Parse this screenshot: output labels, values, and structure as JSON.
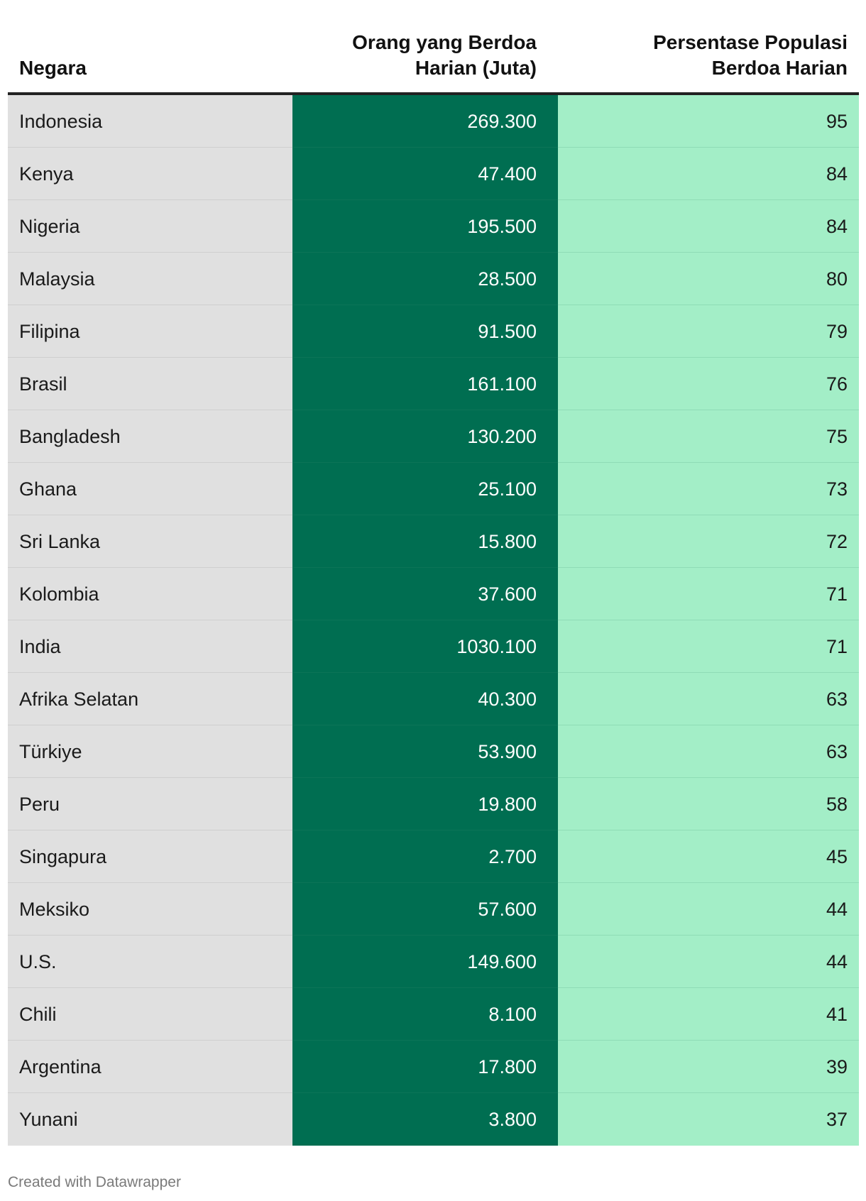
{
  "chart_data": {
    "type": "table",
    "columns": [
      "Negara",
      "Orang yang Berdoa Harian (Juta)",
      "Persentase Populasi Berdoa Harian"
    ],
    "colors": {
      "country_bg": "#e0e0e0",
      "count_bg": "#006e51",
      "pct_bg": "#a3eec7"
    },
    "rows": [
      {
        "country": "Indonesia",
        "count": "269.300",
        "pct": "95"
      },
      {
        "country": "Kenya",
        "count": "47.400",
        "pct": "84"
      },
      {
        "country": "Nigeria",
        "count": "195.500",
        "pct": "84"
      },
      {
        "country": "Malaysia",
        "count": "28.500",
        "pct": "80"
      },
      {
        "country": "Filipina",
        "count": "91.500",
        "pct": "79"
      },
      {
        "country": "Brasil",
        "count": "161.100",
        "pct": "76"
      },
      {
        "country": "Bangladesh",
        "count": "130.200",
        "pct": "75"
      },
      {
        "country": "Ghana",
        "count": "25.100",
        "pct": "73"
      },
      {
        "country": "Sri Lanka",
        "count": "15.800",
        "pct": "72"
      },
      {
        "country": "Kolombia",
        "count": "37.600",
        "pct": "71"
      },
      {
        "country": "India",
        "count": "1030.100",
        "pct": "71"
      },
      {
        "country": "Afrika Selatan",
        "count": "40.300",
        "pct": "63"
      },
      {
        "country": "Türkiye",
        "count": "53.900",
        "pct": "63"
      },
      {
        "country": "Peru",
        "count": "19.800",
        "pct": "58"
      },
      {
        "country": "Singapura",
        "count": "2.700",
        "pct": "45"
      },
      {
        "country": "Meksiko",
        "count": "57.600",
        "pct": "44"
      },
      {
        "country": "U.S.",
        "count": "149.600",
        "pct": "44"
      },
      {
        "country": "Chili",
        "count": "8.100",
        "pct": "41"
      },
      {
        "country": "Argentina",
        "count": "17.800",
        "pct": "39"
      },
      {
        "country": "Yunani",
        "count": "3.800",
        "pct": "37"
      }
    ]
  },
  "header": {
    "country": "Negara",
    "count_line1": "Orang yang Berdoa",
    "count_line2": "Harian (Juta)",
    "pct_line1": "Persentase Populasi",
    "pct_line2": "Berdoa Harian"
  },
  "footer": {
    "credit": "Created with Datawrapper"
  }
}
